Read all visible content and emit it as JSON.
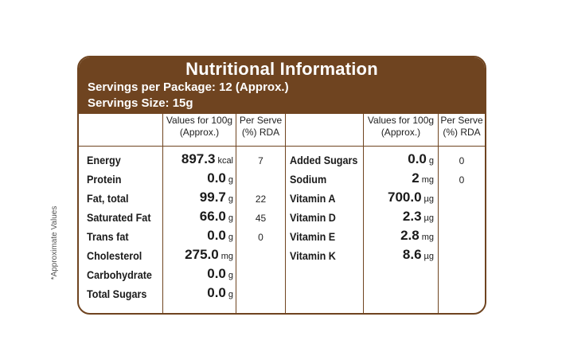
{
  "side_note": "*Approximate Values",
  "header": {
    "title": "Nutritional Information",
    "servings_per_package": "Servings per Package: 12 (Approx.)",
    "serving_size": "Servings Size: 15g"
  },
  "columns": {
    "values_line1": "Values for 100g",
    "values_line2": "(Approx.)",
    "rda_line1": "Per Serve",
    "rda_line2": "(%) RDA"
  },
  "left_rows": [
    {
      "name": "Energy",
      "value": "897.3",
      "unit": "kcal",
      "rda": "7"
    },
    {
      "name": "Protein",
      "value": "0.0",
      "unit": "g",
      "rda": ""
    },
    {
      "name": "Fat, total",
      "value": "99.7",
      "unit": "g",
      "rda": "22"
    },
    {
      "name": "Saturated Fat",
      "value": "66.0",
      "unit": "g",
      "rda": "45"
    },
    {
      "name": "Trans fat",
      "value": "0.0",
      "unit": "g",
      "rda": "0"
    },
    {
      "name": "Cholesterol",
      "value": "275.0",
      "unit": "mg",
      "rda": ""
    },
    {
      "name": "Carbohydrate",
      "value": "0.0",
      "unit": "g",
      "rda": ""
    },
    {
      "name": "Total Sugars",
      "value": "0.0",
      "unit": "g",
      "rda": ""
    }
  ],
  "right_rows": [
    {
      "name": "Added Sugars",
      "value": "0.0",
      "unit": "g",
      "rda": "0"
    },
    {
      "name": "Sodium",
      "value": "2",
      "unit": "mg",
      "rda": "0"
    },
    {
      "name": "Vitamin A",
      "value": "700.0",
      "unit": "µg",
      "rda": ""
    },
    {
      "name": "Vitamin D",
      "value": "2.3",
      "unit": "µg",
      "rda": ""
    },
    {
      "name": "Vitamin E",
      "value": "2.8",
      "unit": "mg",
      "rda": ""
    },
    {
      "name": "Vitamin K",
      "value": "8.6",
      "unit": "µg",
      "rda": ""
    }
  ],
  "colors": {
    "brand_brown": "#6f4420"
  }
}
